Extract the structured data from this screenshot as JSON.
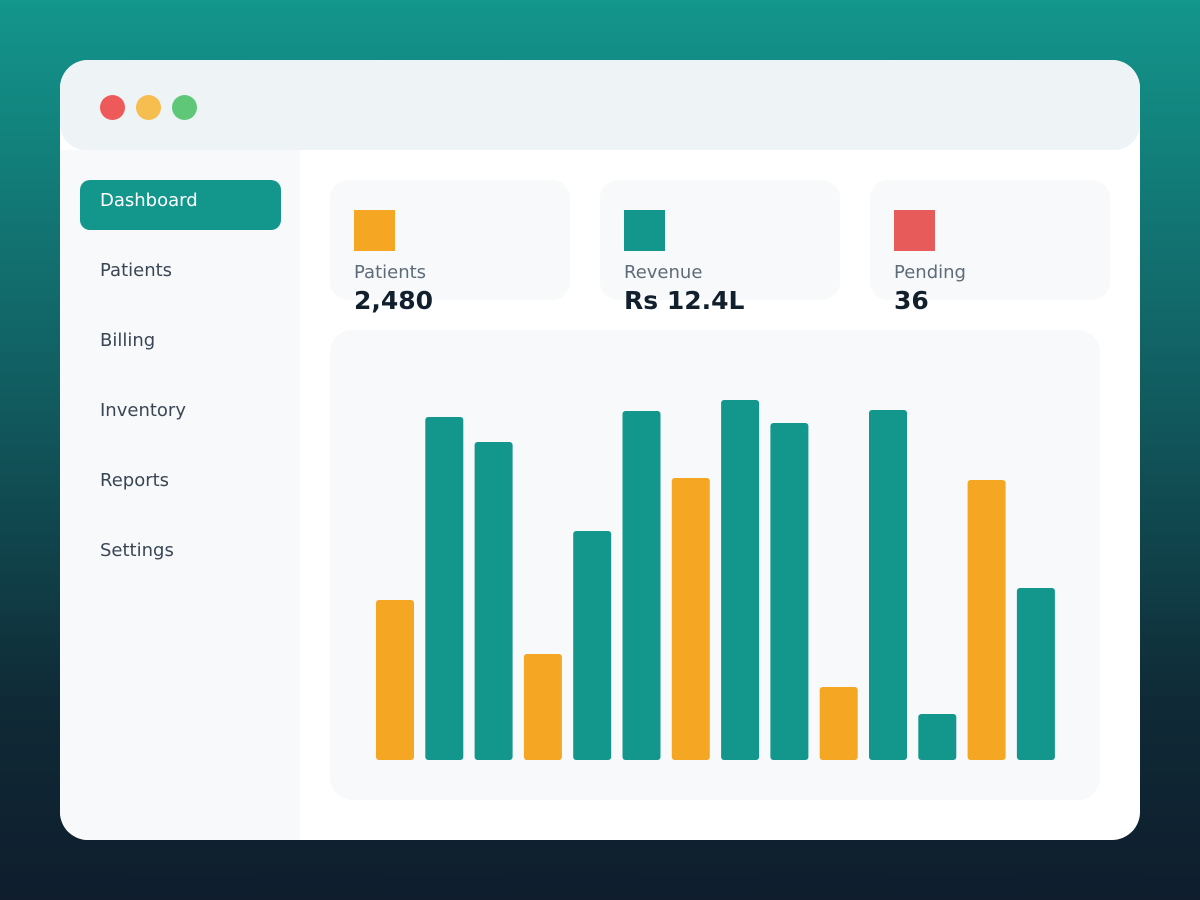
{
  "window": {
    "controls": [
      "close",
      "minimize",
      "maximize"
    ]
  },
  "sidebar": {
    "items": [
      {
        "label": "Dashboard",
        "active": true
      },
      {
        "label": "Patients",
        "active": false
      },
      {
        "label": "Billing",
        "active": false
      },
      {
        "label": "Inventory",
        "active": false
      },
      {
        "label": "Reports",
        "active": false
      },
      {
        "label": "Settings",
        "active": false
      }
    ]
  },
  "cards": [
    {
      "label": "Patients",
      "value": "2,480",
      "color": "#f5a623"
    },
    {
      "label": "Revenue",
      "value": "Rs 12.4L",
      "color": "#13968c"
    },
    {
      "label": "Pending",
      "value": "36",
      "color": "#e85b5b"
    }
  ],
  "colors": {
    "accent": "#13968c",
    "highlight": "#f5a623",
    "alert": "#e85b5b"
  },
  "chart_data": {
    "type": "bar",
    "values": [
      16,
      34.3,
      31.8,
      10.6,
      22.9,
      34.9,
      28.2,
      36,
      33.7,
      7.3,
      35,
      4.6,
      28,
      17.2
    ],
    "bar_colors": [
      "#f5a623",
      "#13968c",
      "#13968c",
      "#f5a623",
      "#13968c",
      "#13968c",
      "#f5a623",
      "#13968c",
      "#13968c",
      "#f5a623",
      "#13968c",
      "#13968c",
      "#f5a623",
      "#13968c"
    ],
    "ylim": [
      0,
      36
    ],
    "grid": false,
    "axes_visible": false
  }
}
